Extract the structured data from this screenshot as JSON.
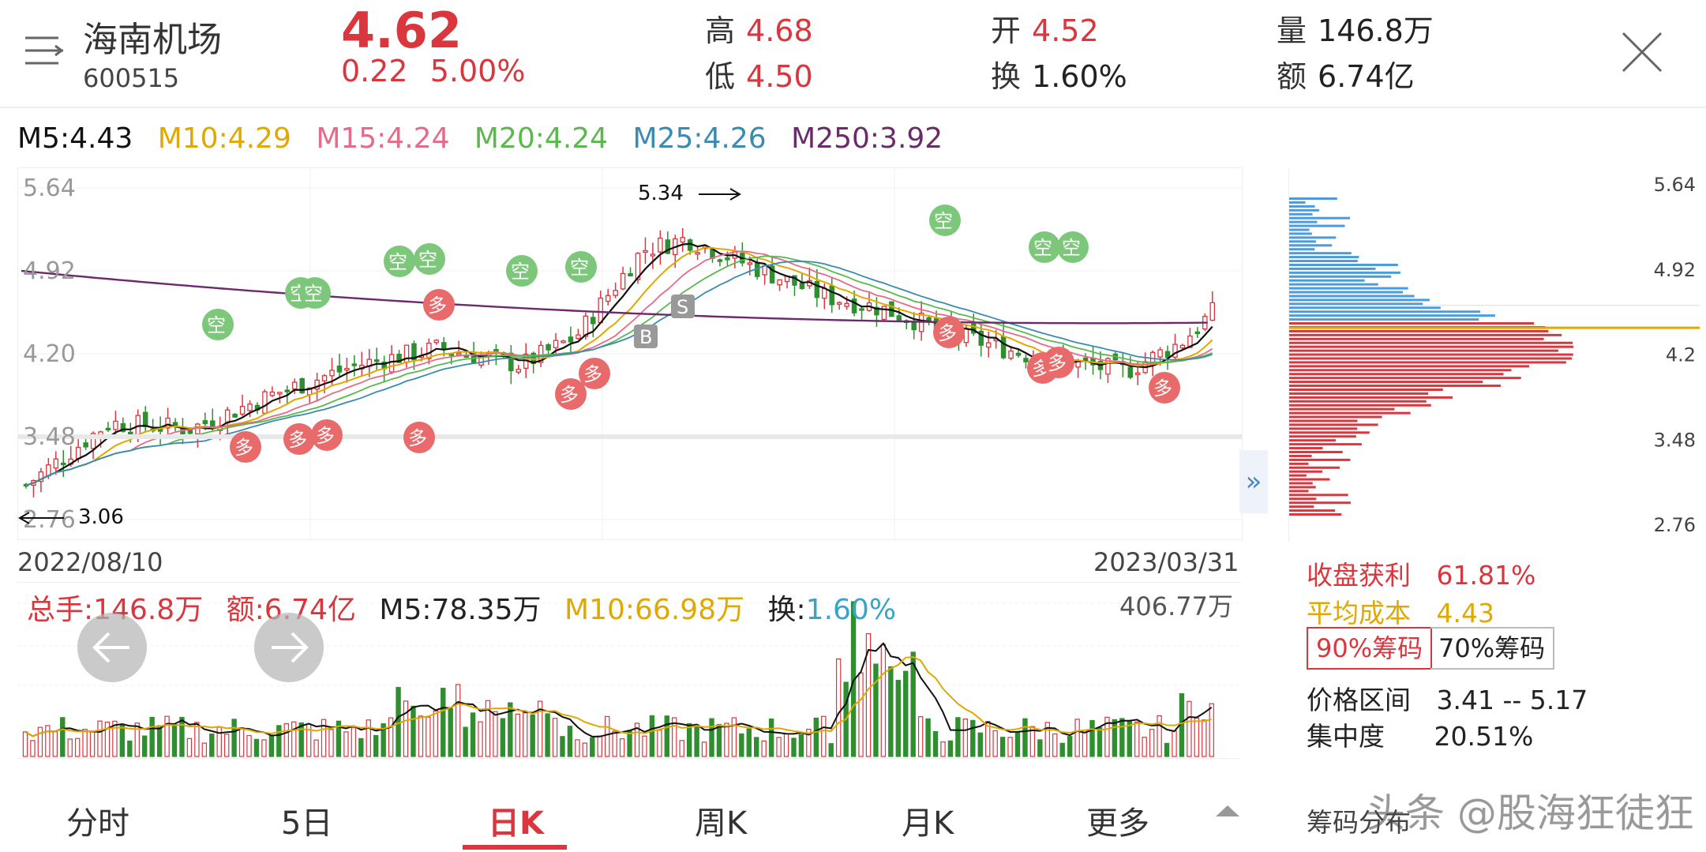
{
  "header": {
    "stock_name": "海南机场",
    "stock_code": "600515",
    "price": "4.62",
    "change": "0.22",
    "change_pct": "5.00%",
    "high_label": "高",
    "high": "4.68",
    "low_label": "低",
    "low": "4.50",
    "open_label": "开",
    "open": "4.52",
    "turnover_label": "换",
    "turnover": "1.60%",
    "volume_label": "量",
    "volume": "146.8万",
    "amount_label": "额",
    "amount": "6.74亿"
  },
  "ma": {
    "m5": "M5:4.43",
    "m10": "M10:4.29",
    "m15": "M15:4.24",
    "m20": "M20:4.24",
    "m25": "M25:4.26",
    "m250": "M250:3.92"
  },
  "colors": {
    "up": "#d9363e",
    "down": "#2f8f2f",
    "m5": "#111111",
    "m10": "#e0a800",
    "m15": "#e46b8a",
    "m20": "#5bb84d",
    "m25": "#3a8bb0",
    "m250": "#6b2a6b"
  },
  "kline": {
    "y_ticks": [
      "5.64",
      "4.92",
      "4.20",
      "3.48",
      "2.76"
    ],
    "max_label": "5.34",
    "min_label": "3.06",
    "date_start": "2022/08/10",
    "date_end": "2023/03/31",
    "signal_buy": "多",
    "signal_sell": "空",
    "trade_b": "B",
    "trade_s": "S"
  },
  "volume": {
    "total": "总手:146.8万",
    "amount": "额:6.74亿",
    "m5": "M5:78.35万",
    "m10": "M10:66.98万",
    "turnover_label": "换:",
    "turnover": "1.60%",
    "max": "406.77万"
  },
  "chips": {
    "ticks": [
      "5.64",
      "4.92",
      "4.2",
      "3.48",
      "2.76"
    ],
    "profit_label": "收盘获利",
    "profit": "61.81%",
    "avg_cost_label": "平均成本",
    "avg_cost": "4.43",
    "btn_90": "90%筹码",
    "btn_70": "70%筹码",
    "range_label": "价格区间",
    "range": "3.41 -- 5.17",
    "concentration_label": "集中度",
    "concentration": "20.51%",
    "dist_label": "筹码分布"
  },
  "tabs": [
    "分时",
    "5日",
    "日K",
    "周K",
    "月K",
    "更多"
  ],
  "active_tab": "日K",
  "watermark": "头条 @股海狂徒狂"
}
